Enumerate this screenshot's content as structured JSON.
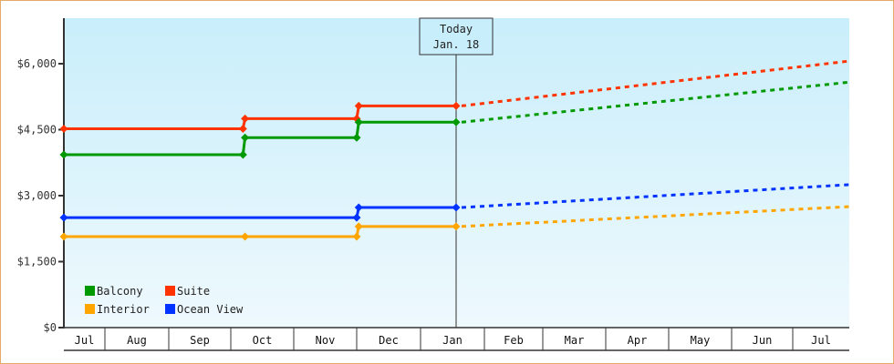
{
  "chart_data": {
    "type": "line",
    "title": "",
    "xlabel": "",
    "ylabel": "",
    "ylim": [
      0,
      7000
    ],
    "y_ticks": [
      "$0",
      "$1,500",
      "$3,000",
      "$4,500",
      "$6,000"
    ],
    "y_tick_values": [
      0,
      1500,
      3000,
      4500,
      6000
    ],
    "months": [
      "Jul",
      "Aug",
      "Sep",
      "Oct",
      "Nov",
      "Dec",
      "Jan",
      "Feb",
      "Mar",
      "Apr",
      "May",
      "Jun",
      "Jul"
    ],
    "grid": false,
    "background": "gradient light blue",
    "today_marker": {
      "line1": "Today",
      "line2": "Jan. 18"
    },
    "legend": {
      "position": "bottom-left inside",
      "entries": [
        {
          "name": "Balcony",
          "color": "#009900"
        },
        {
          "name": "Suite",
          "color": "#ff3300"
        },
        {
          "name": "Interior",
          "color": "#ffa500"
        },
        {
          "name": "Ocean View",
          "color": "#0033ff"
        }
      ]
    },
    "series": [
      {
        "name": "Suite",
        "color": "#ff3300",
        "historical": [
          {
            "date": "Jul 1",
            "value": 4520
          },
          {
            "date": "Oct 7",
            "value": 4520
          },
          {
            "date": "Oct 8",
            "value": 4750
          },
          {
            "date": "Dec 1",
            "value": 4750
          },
          {
            "date": "Dec 2",
            "value": 5040
          },
          {
            "date": "Jan 18",
            "value": 5040
          }
        ],
        "projected": [
          {
            "date": "Jan 18",
            "value": 5040
          },
          {
            "date": "Jul 31",
            "value": 6060
          }
        ]
      },
      {
        "name": "Balcony",
        "color": "#009900",
        "historical": [
          {
            "date": "Jul 1",
            "value": 3930
          },
          {
            "date": "Oct 7",
            "value": 3930
          },
          {
            "date": "Oct 8",
            "value": 4320
          },
          {
            "date": "Dec 1",
            "value": 4320
          },
          {
            "date": "Dec 2",
            "value": 4670
          },
          {
            "date": "Jan 18",
            "value": 4670
          }
        ],
        "projected": [
          {
            "date": "Jan 18",
            "value": 4670
          },
          {
            "date": "Jul 31",
            "value": 5580
          }
        ]
      },
      {
        "name": "Ocean View",
        "color": "#0033ff",
        "historical": [
          {
            "date": "Jul 1",
            "value": 2500
          },
          {
            "date": "Dec 1",
            "value": 2500
          },
          {
            "date": "Dec 2",
            "value": 2730
          },
          {
            "date": "Jan 18",
            "value": 2730
          }
        ],
        "projected": [
          {
            "date": "Jan 18",
            "value": 2730
          },
          {
            "date": "Jul 31",
            "value": 3250
          }
        ]
      },
      {
        "name": "Interior",
        "color": "#ffa500",
        "historical": [
          {
            "date": "Jul 1",
            "value": 2070
          },
          {
            "date": "Oct 8",
            "value": 2070
          },
          {
            "date": "Dec 1",
            "value": 2070
          },
          {
            "date": "Dec 2",
            "value": 2300
          },
          {
            "date": "Jan 18",
            "value": 2300
          }
        ],
        "projected": [
          {
            "date": "Jan 18",
            "value": 2300
          },
          {
            "date": "Jul 31",
            "value": 2750
          }
        ]
      }
    ]
  }
}
